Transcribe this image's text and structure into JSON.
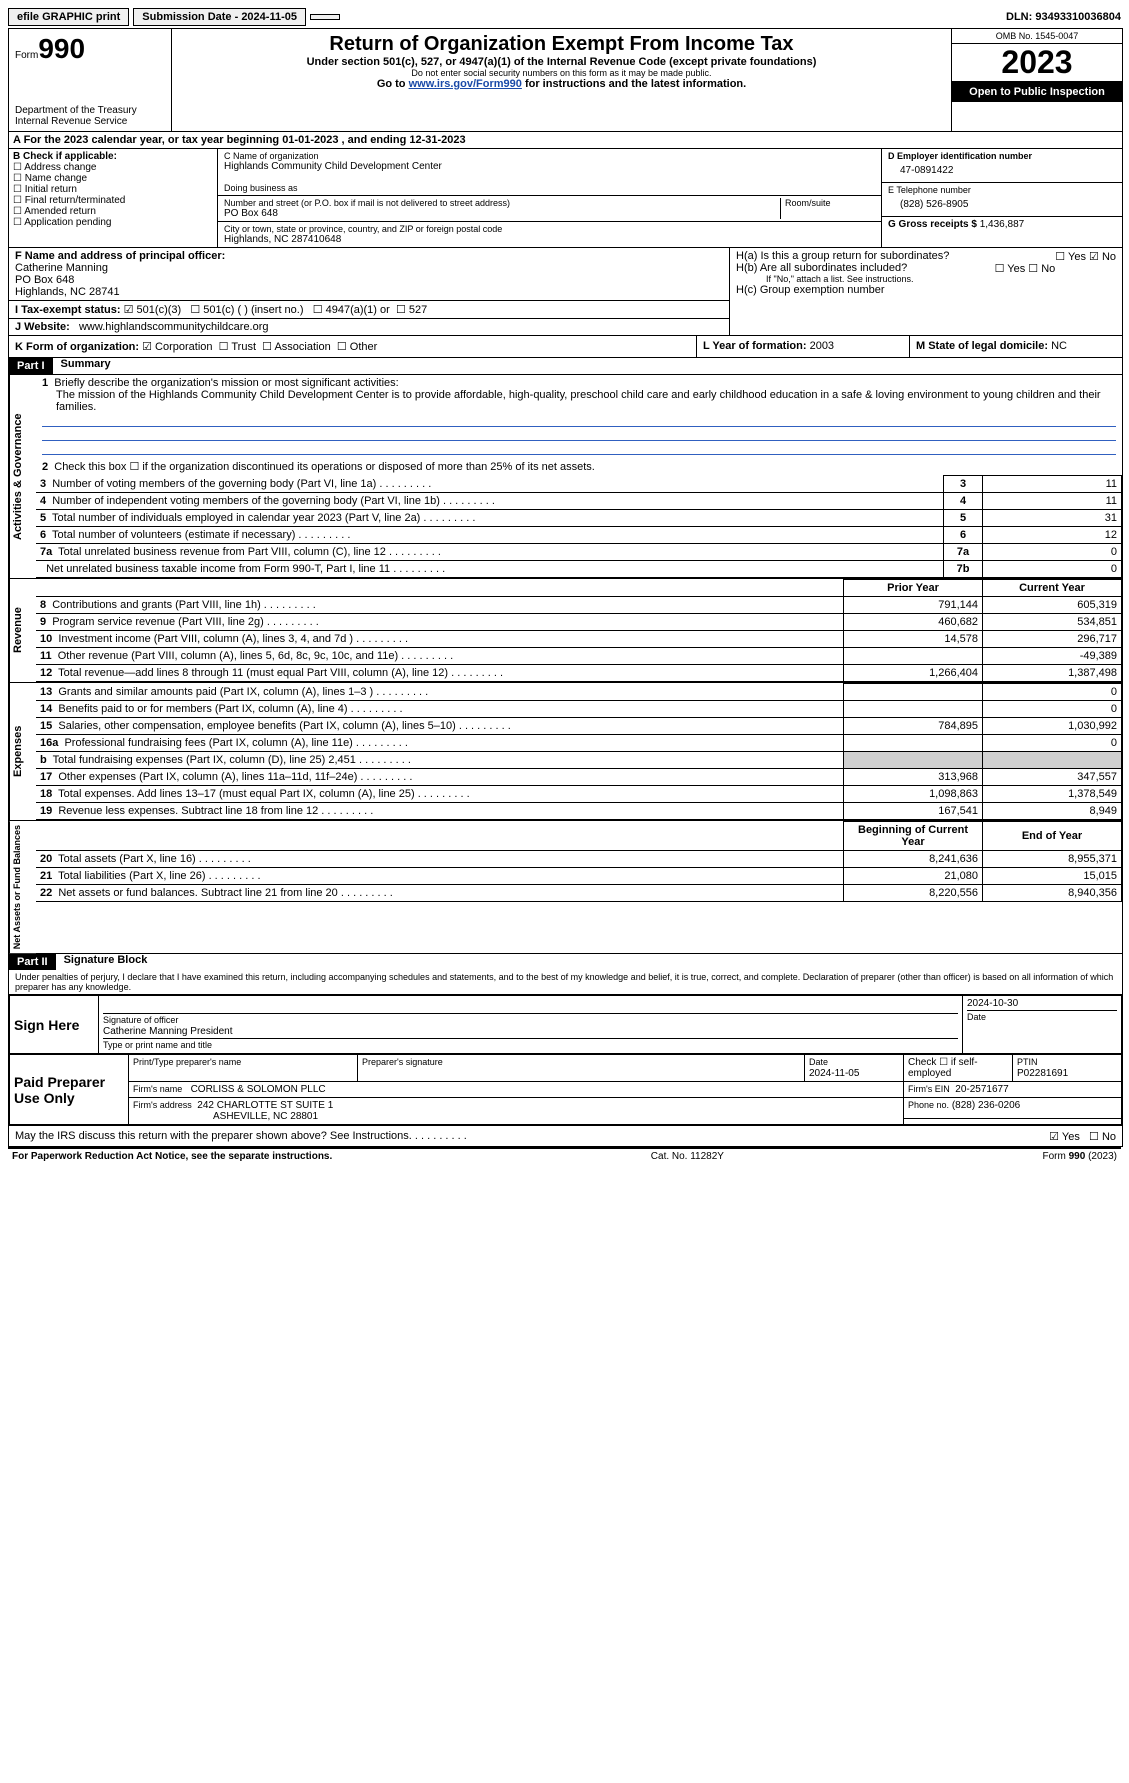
{
  "topbar": {
    "efile": "efile GRAPHIC print",
    "submission": "Submission Date - 2024-11-05",
    "dln_label": "DLN:",
    "dln": "93493310036804"
  },
  "header": {
    "form_label": "Form",
    "form_no": "990",
    "dept": "Department of the Treasury",
    "irs": "Internal Revenue Service",
    "title": "Return of Organization Exempt From Income Tax",
    "sub1": "Under section 501(c), 527, or 4947(a)(1) of the Internal Revenue Code (except private foundations)",
    "sub2": "Do not enter social security numbers on this form as it may be made public.",
    "sub3_pre": "Go to ",
    "sub3_link": "www.irs.gov/Form990",
    "sub3_post": " for instructions and the latest information.",
    "omb": "OMB No. 1545-0047",
    "year": "2023",
    "open": "Open to Public Inspection"
  },
  "lineA": "A For the 2023 calendar year, or tax year beginning 01-01-2023    , and ending 12-31-2023",
  "colB": {
    "label": "B Check if applicable:",
    "opts": [
      "Address change",
      "Name change",
      "Initial return",
      "Final return/terminated",
      "Amended return",
      "Application pending"
    ]
  },
  "colC": {
    "name_lbl": "C Name of organization",
    "name": "Highlands Community Child Development Center",
    "dba_lbl": "Doing business as",
    "addr_lbl": "Number and street (or P.O. box if mail is not delivered to street address)",
    "room_lbl": "Room/suite",
    "addr": "PO Box 648",
    "city_lbl": "City or town, state or province, country, and ZIP or foreign postal code",
    "city": "Highlands, NC  287410648"
  },
  "colD": {
    "ein_lbl": "D Employer identification number",
    "ein": "47-0891422",
    "tel_lbl": "E Telephone number",
    "tel": "(828) 526-8905",
    "gross_lbl": "G Gross receipts $",
    "gross": "1,436,887"
  },
  "lineF": {
    "label": "F  Name and address of principal officer:",
    "name": "Catherine Manning",
    "addr1": "PO Box 648",
    "addr2": "Highlands, NC  28741"
  },
  "lineH": {
    "ha": "H(a)  Is this a group return for subordinates?",
    "hb": "H(b)  Are all subordinates included?",
    "hb_note": "If \"No,\" attach a list. See instructions.",
    "hc": "H(c)  Group exemption number",
    "yes": "Yes",
    "no": "No"
  },
  "lineI": {
    "label": "I    Tax-exempt status:",
    "o1": "501(c)(3)",
    "o2": "501(c) (  ) (insert no.)",
    "o3": "4947(a)(1) or",
    "o4": "527"
  },
  "lineJ": {
    "label": "J   Website:",
    "val": "www.highlandscommunitychildcare.org"
  },
  "lineK": {
    "label": "K Form of organization:",
    "o1": "Corporation",
    "o2": "Trust",
    "o3": "Association",
    "o4": "Other"
  },
  "lineL": {
    "label": "L Year of formation:",
    "val": "2003"
  },
  "lineM": {
    "label": "M State of legal domicile:",
    "val": "NC"
  },
  "part1": {
    "hdr": "Part I",
    "title": "Summary",
    "side_ag": "Activities & Governance",
    "side_rev": "Revenue",
    "side_exp": "Expenses",
    "side_na": "Net Assets or Fund Balances",
    "l1_lbl": "Briefly describe the organization's mission or most significant activities:",
    "l1_txt": "The mission of the Highlands Community Child Development Center is to provide affordable, high-quality, preschool child care and early childhood education in a safe & loving environment to young children and their families.",
    "l2": "Check this box  ☐  if the organization discontinued its operations or disposed of more than 25% of its net assets.",
    "rows_ag": [
      {
        "n": "3",
        "t": "Number of voting members of the governing body (Part VI, line 1a)",
        "c": "3",
        "v": "11"
      },
      {
        "n": "4",
        "t": "Number of independent voting members of the governing body (Part VI, line 1b)",
        "c": "4",
        "v": "11"
      },
      {
        "n": "5",
        "t": "Total number of individuals employed in calendar year 2023 (Part V, line 2a)",
        "c": "5",
        "v": "31"
      },
      {
        "n": "6",
        "t": "Total number of volunteers (estimate if necessary)",
        "c": "6",
        "v": "12"
      },
      {
        "n": "7a",
        "t": "Total unrelated business revenue from Part VIII, column (C), line 12",
        "c": "7a",
        "v": "0"
      },
      {
        "n": "",
        "t": "Net unrelated business taxable income from Form 990-T, Part I, line 11",
        "c": "7b",
        "v": "0"
      }
    ],
    "hdr_prior": "Prior Year",
    "hdr_curr": "Current Year",
    "rows_rev": [
      {
        "n": "8",
        "t": "Contributions and grants (Part VIII, line 1h)",
        "p": "791,144",
        "c": "605,319"
      },
      {
        "n": "9",
        "t": "Program service revenue (Part VIII, line 2g)",
        "p": "460,682",
        "c": "534,851"
      },
      {
        "n": "10",
        "t": "Investment income (Part VIII, column (A), lines 3, 4, and 7d )",
        "p": "14,578",
        "c": "296,717"
      },
      {
        "n": "11",
        "t": "Other revenue (Part VIII, column (A), lines 5, 6d, 8c, 9c, 10c, and 11e)",
        "p": "",
        "c": "-49,389"
      },
      {
        "n": "12",
        "t": "Total revenue—add lines 8 through 11 (must equal Part VIII, column (A), line 12)",
        "p": "1,266,404",
        "c": "1,387,498"
      }
    ],
    "rows_exp": [
      {
        "n": "13",
        "t": "Grants and similar amounts paid (Part IX, column (A), lines 1–3 )",
        "p": "",
        "c": "0"
      },
      {
        "n": "14",
        "t": "Benefits paid to or for members (Part IX, column (A), line 4)",
        "p": "",
        "c": "0"
      },
      {
        "n": "15",
        "t": "Salaries, other compensation, employee benefits (Part IX, column (A), lines 5–10)",
        "p": "784,895",
        "c": "1,030,992"
      },
      {
        "n": "16a",
        "t": "Professional fundraising fees (Part IX, column (A), line 11e)",
        "p": "",
        "c": "0"
      },
      {
        "n": "b",
        "t": "Total fundraising expenses (Part IX, column (D), line 25) 2,451",
        "p": "GRAY",
        "c": "GRAY"
      },
      {
        "n": "17",
        "t": "Other expenses (Part IX, column (A), lines 11a–11d, 11f–24e)",
        "p": "313,968",
        "c": "347,557"
      },
      {
        "n": "18",
        "t": "Total expenses. Add lines 13–17 (must equal Part IX, column (A), line 25)",
        "p": "1,098,863",
        "c": "1,378,549"
      },
      {
        "n": "19",
        "t": "Revenue less expenses. Subtract line 18 from line 12",
        "p": "167,541",
        "c": "8,949"
      }
    ],
    "hdr_beg": "Beginning of Current Year",
    "hdr_end": "End of Year",
    "rows_na": [
      {
        "n": "20",
        "t": "Total assets (Part X, line 16)",
        "p": "8,241,636",
        "c": "8,955,371"
      },
      {
        "n": "21",
        "t": "Total liabilities (Part X, line 26)",
        "p": "21,080",
        "c": "15,015"
      },
      {
        "n": "22",
        "t": "Net assets or fund balances. Subtract line 21 from line 20",
        "p": "8,220,556",
        "c": "8,940,356"
      }
    ]
  },
  "part2": {
    "hdr": "Part II",
    "title": "Signature Block",
    "decl": "Under penalties of perjury, I declare that I have examined this return, including accompanying schedules and statements, and to the best of my knowledge and belief, it is true, correct, and complete. Declaration of preparer (other than officer) is based on all information of which preparer has any knowledge.",
    "sign_here": "Sign Here",
    "sig_officer": "Signature of officer",
    "sig_name": "Catherine Manning  President",
    "sig_type": "Type or print name and title",
    "date_lbl": "Date",
    "date": "2024-10-30",
    "paid": "Paid Preparer Use Only",
    "pp_name_lbl": "Print/Type preparer's name",
    "pp_sig_lbl": "Preparer's signature",
    "pp_date_lbl": "Date",
    "pp_date": "2024-11-05",
    "pp_check": "Check ☐ if self-employed",
    "ptin_lbl": "PTIN",
    "ptin": "P02281691",
    "firm_name_lbl": "Firm's name",
    "firm_name": "CORLISS & SOLOMON PLLC",
    "firm_ein_lbl": "Firm's EIN",
    "firm_ein": "20-2571677",
    "firm_addr_lbl": "Firm's address",
    "firm_addr1": "242 CHARLOTTE ST SUITE 1",
    "firm_addr2": "ASHEVILLE, NC  28801",
    "phone_lbl": "Phone no.",
    "phone": "(828) 236-0206",
    "may_irs": "May the IRS discuss this return with the preparer shown above? See Instructions.",
    "yes": "Yes",
    "no": "No"
  },
  "footer": {
    "pra": "For Paperwork Reduction Act Notice, see the separate instructions.",
    "cat": "Cat. No. 11282Y",
    "form": "Form 990 (2023)"
  }
}
